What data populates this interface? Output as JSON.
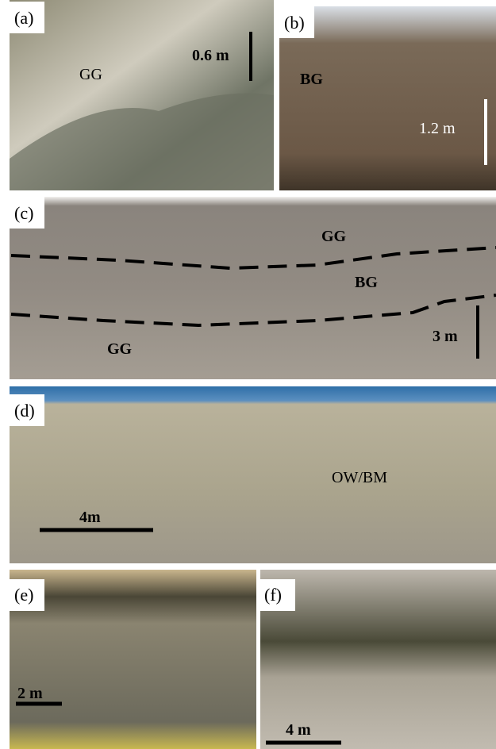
{
  "panels": [
    {
      "label": "(a)",
      "annotations": [
        "GG",
        "0.6 m"
      ]
    },
    {
      "label": "(b)",
      "annotations": [
        "BG",
        "1.2 m"
      ]
    },
    {
      "label": "(c)",
      "annotations": [
        "GG",
        "BG",
        "GG",
        "3 m"
      ]
    },
    {
      "label": "(d)",
      "annotations": [
        "OW/BM",
        "4m"
      ]
    },
    {
      "label": "(e)",
      "annotations": [
        "2 m"
      ]
    },
    {
      "label": "(f)",
      "annotations": [
        "4 m"
      ]
    }
  ]
}
